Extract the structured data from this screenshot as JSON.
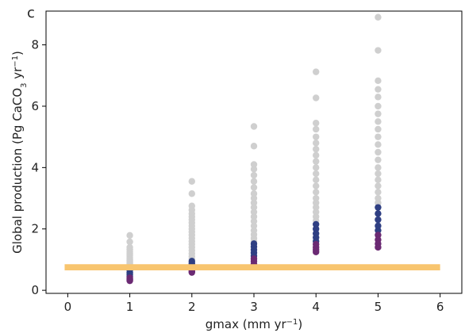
{
  "chart_data": {
    "type": "scatter",
    "panel_label": "c",
    "xlabel_main": "gmax (mm yr",
    "xlabel_sup": "−1",
    "xlabel_tail": ")",
    "ylabel_main": "Global production (Pg CaCO",
    "ylabel_sub": "3",
    "ylabel_mid": " yr",
    "ylabel_sup": "−1",
    "ylabel_tail": ")",
    "xlim": [
      -0.35,
      6.35
    ],
    "ylim": [
      -0.1,
      9.1
    ],
    "xticks": [
      0,
      1,
      2,
      3,
      4,
      5,
      6
    ],
    "yticks": [
      0,
      2,
      4,
      6,
      8
    ],
    "xtick_labels": [
      "0",
      "1",
      "2",
      "3",
      "4",
      "5",
      "6"
    ],
    "ytick_labels": [
      "0",
      "2",
      "4",
      "6",
      "8"
    ],
    "reference_band": {
      "y_low": 0.65,
      "y_high": 0.85,
      "x_from": -0.05,
      "x_to": 6.0,
      "color": "#f8c56f"
    },
    "colors": {
      "rejected": "#cfcfcf",
      "accepted_low": "#6b2a73",
      "accepted_high": "#2f3f83"
    },
    "series": [
      {
        "x": 1,
        "gray": [
          1.79,
          1.58,
          1.4,
          1.33,
          1.26,
          1.2,
          1.14,
          1.08,
          1.02,
          0.97,
          0.92,
          0.87,
          0.83,
          0.79,
          0.75,
          0.71
        ],
        "colored": [
          0.66,
          0.58,
          0.52,
          0.46,
          0.41,
          0.37,
          0.34,
          0.31
        ]
      },
      {
        "x": 2,
        "gray": [
          3.55,
          3.15,
          2.75,
          2.62,
          2.5,
          2.4,
          2.3,
          2.2,
          2.1,
          2.0,
          1.9,
          1.8,
          1.7,
          1.6,
          1.5,
          1.4,
          1.3,
          1.2,
          1.1,
          1.02
        ],
        "colored": [
          0.95,
          0.88,
          0.82,
          0.77,
          0.72,
          0.67,
          0.62,
          0.58
        ]
      },
      {
        "x": 3,
        "gray": [
          5.34,
          4.7,
          4.1,
          3.95,
          3.75,
          3.55,
          3.35,
          3.15,
          3.0,
          2.85,
          2.7,
          2.55,
          2.4,
          2.25,
          2.1,
          1.95,
          1.82,
          1.7,
          1.6
        ],
        "colored": [
          1.52,
          1.42,
          1.32,
          1.22,
          1.12,
          1.03,
          0.95,
          0.86,
          0.8
        ]
      },
      {
        "x": 4,
        "gray": [
          7.12,
          6.27,
          5.45,
          5.25,
          5.0,
          4.8,
          4.6,
          4.4,
          4.2,
          4.0,
          3.8,
          3.6,
          3.4,
          3.2,
          3.0,
          2.85,
          2.7,
          2.55,
          2.4,
          2.27
        ],
        "colored": [
          2.15,
          2.0,
          1.85,
          1.72,
          1.6,
          1.5,
          1.4,
          1.32,
          1.25
        ]
      },
      {
        "x": 5,
        "gray": [
          8.9,
          7.82,
          6.83,
          6.55,
          6.3,
          6.0,
          5.75,
          5.5,
          5.25,
          5.0,
          4.75,
          4.5,
          4.25,
          4.0,
          3.8,
          3.6,
          3.4,
          3.2,
          3.0,
          2.85
        ],
        "colored": [
          2.7,
          2.5,
          2.3,
          2.1,
          1.95,
          1.8,
          1.65,
          1.52,
          1.4
        ]
      }
    ]
  }
}
